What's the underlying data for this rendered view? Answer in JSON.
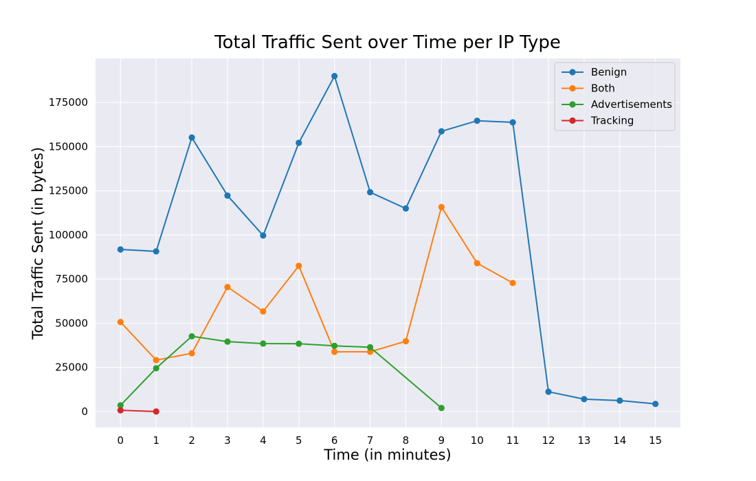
{
  "chart_data": {
    "type": "line",
    "title": "Total Traffic Sent over Time per IP Type",
    "xlabel": "Time (in minutes)",
    "ylabel": "Total Traffic Sent (in bytes)",
    "xlim": [
      -0.7,
      15.7
    ],
    "ylim": [
      -9000,
      200000
    ],
    "x_ticks": [
      0,
      1,
      2,
      3,
      4,
      5,
      6,
      7,
      8,
      9,
      10,
      11,
      12,
      13,
      14,
      15
    ],
    "y_ticks": [
      0,
      25000,
      50000,
      75000,
      100000,
      125000,
      150000,
      175000
    ],
    "grid": true,
    "background": "#eaeaf2",
    "legend_position": "top-right",
    "series": [
      {
        "name": "Benign",
        "color": "#1f77b4",
        "x": [
          0,
          1,
          2,
          3,
          4,
          5,
          6,
          7,
          8,
          9,
          10,
          11,
          12,
          13,
          14,
          15
        ],
        "y": [
          91800,
          90700,
          155200,
          122300,
          99700,
          152200,
          190000,
          124200,
          115000,
          158700,
          164700,
          163800,
          11200,
          7000,
          6200,
          4300
        ]
      },
      {
        "name": "Both",
        "color": "#ff7f0e",
        "x": [
          0,
          1,
          2,
          3,
          4,
          5,
          6,
          7,
          8,
          9,
          10,
          11
        ],
        "y": [
          50700,
          29100,
          33000,
          70500,
          56700,
          82500,
          33800,
          33800,
          39800,
          115800,
          84000,
          72800
        ]
      },
      {
        "name": "Advertisements",
        "color": "#2ca02c",
        "x": [
          0,
          1,
          2,
          3,
          4,
          5,
          6,
          7,
          9
        ],
        "y": [
          3500,
          24500,
          42600,
          39600,
          38500,
          38400,
          37200,
          36400,
          2000
        ]
      },
      {
        "name": "Tracking",
        "color": "#d62728",
        "x": [
          0,
          1
        ],
        "y": [
          700,
          0
        ]
      }
    ]
  }
}
